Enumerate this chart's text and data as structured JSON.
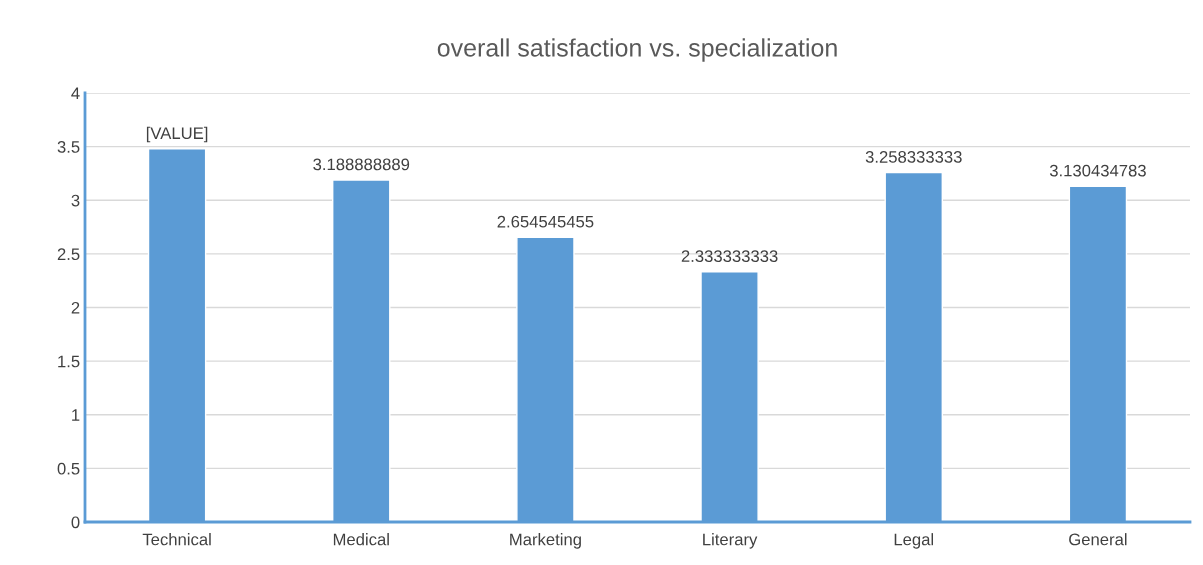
{
  "chart_data": {
    "type": "bar",
    "title": "overall satisfaction vs. specialization",
    "categories": [
      "Technical",
      "Medical",
      "Marketing",
      "Literary",
      "Legal",
      "General"
    ],
    "values": [
      3.48,
      3.188888889,
      2.654545455,
      2.333333333,
      3.258333333,
      3.130434783
    ],
    "value_labels": [
      "[VALUE]",
      "3.188888889",
      "2.654545455",
      "2.333333333",
      "3.258333333",
      "3.130434783"
    ],
    "color": "#5b9bd5",
    "ylim": [
      0,
      4
    ],
    "yticks": [
      0,
      0.5,
      1,
      1.5,
      2,
      2.5,
      3,
      3.5,
      4
    ],
    "grid": "y",
    "legend": false
  }
}
